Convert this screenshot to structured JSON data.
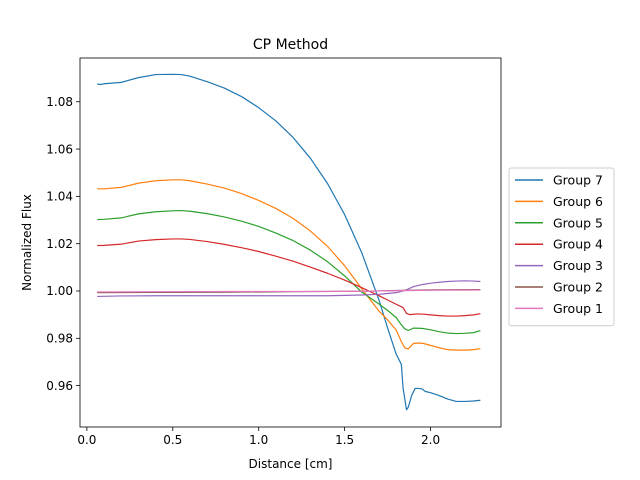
{
  "chart_data": {
    "type": "line",
    "title": "CP Method",
    "xlabel": "Distance [cm]",
    "ylabel": "Normalized Flux",
    "xlim": [
      -0.04,
      2.41
    ],
    "ylim": [
      0.9425,
      1.0985
    ],
    "xticks": [
      0.0,
      0.5,
      1.0,
      1.5,
      2.0
    ],
    "xtick_labels": [
      "0.0",
      "0.5",
      "1.0",
      "1.5",
      "2.0"
    ],
    "yticks": [
      0.96,
      0.98,
      1.0,
      1.02,
      1.04,
      1.06,
      1.08
    ],
    "ytick_labels": [
      "0.96",
      "0.98",
      "1.00",
      "1.02",
      "1.04",
      "1.06",
      "1.08"
    ],
    "grid": false,
    "legend_position": "right outside",
    "series": [
      {
        "name": "Group 7",
        "color": "#1f77b4",
        "x": [
          0.06,
          0.08,
          0.1,
          0.2,
          0.3,
          0.4,
          0.5,
          0.55,
          0.6,
          0.7,
          0.8,
          0.9,
          1.0,
          1.1,
          1.2,
          1.3,
          1.4,
          1.5,
          1.6,
          1.7,
          1.75,
          1.8,
          1.83,
          1.84,
          1.86,
          1.87,
          1.89,
          1.91,
          1.93,
          1.95,
          1.97,
          2.0,
          2.05,
          2.1,
          2.15,
          2.2,
          2.25,
          2.29
        ],
        "y": [
          1.0875,
          1.0873,
          1.0876,
          1.0882,
          1.0902,
          1.0915,
          1.0916,
          1.0915,
          1.0908,
          1.0885,
          1.0858,
          1.0822,
          1.0775,
          1.0719,
          1.0649,
          1.0562,
          1.0455,
          1.0323,
          1.0161,
          0.9962,
          0.9844,
          0.9733,
          0.969,
          0.959,
          0.9498,
          0.9508,
          0.9558,
          0.9588,
          0.9588,
          0.9586,
          0.9575,
          0.957,
          0.9558,
          0.9543,
          0.9533,
          0.9533,
          0.9535,
          0.9538
        ]
      },
      {
        "name": "Group 6",
        "color": "#ff7f0e",
        "x": [
          0.06,
          0.1,
          0.2,
          0.3,
          0.4,
          0.5,
          0.55,
          0.6,
          0.7,
          0.8,
          0.9,
          1.0,
          1.1,
          1.2,
          1.3,
          1.4,
          1.5,
          1.6,
          1.7,
          1.75,
          1.8,
          1.83,
          1.85,
          1.87,
          1.9,
          1.93,
          1.96,
          2.0,
          2.05,
          2.1,
          2.15,
          2.2,
          2.25,
          2.29
        ],
        "y": [
          1.0432,
          1.0432,
          1.0438,
          1.0456,
          1.0466,
          1.047,
          1.047,
          1.0466,
          1.0452,
          1.0435,
          1.0412,
          1.0383,
          1.0349,
          1.0307,
          1.0254,
          1.0189,
          1.0107,
          1.0009,
          0.9915,
          0.9878,
          0.9835,
          0.9786,
          0.976,
          0.9755,
          0.9778,
          0.978,
          0.9778,
          0.977,
          0.976,
          0.9752,
          0.975,
          0.975,
          0.9752,
          0.9756
        ]
      },
      {
        "name": "Group 5",
        "color": "#2ca02c",
        "x": [
          0.06,
          0.1,
          0.2,
          0.3,
          0.4,
          0.5,
          0.55,
          0.6,
          0.7,
          0.8,
          0.9,
          1.0,
          1.1,
          1.2,
          1.3,
          1.4,
          1.5,
          1.6,
          1.7,
          1.75,
          1.8,
          1.83,
          1.85,
          1.87,
          1.9,
          1.95,
          2.0,
          2.05,
          2.1,
          2.15,
          2.2,
          2.25,
          2.29
        ],
        "y": [
          1.0302,
          1.0303,
          1.0309,
          1.0326,
          1.0335,
          1.0339,
          1.034,
          1.0337,
          1.0327,
          1.0313,
          1.0295,
          1.0273,
          1.0245,
          1.0213,
          1.0173,
          1.0124,
          1.0064,
          0.9995,
          0.9945,
          0.9918,
          0.9888,
          0.9857,
          0.984,
          0.9833,
          0.9843,
          0.9842,
          0.9836,
          0.9828,
          0.9822,
          0.982,
          0.9821,
          0.9824,
          0.9832
        ]
      },
      {
        "name": "Group 4",
        "color": "#d62728",
        "x": [
          0.06,
          0.1,
          0.2,
          0.3,
          0.4,
          0.5,
          0.55,
          0.6,
          0.7,
          0.8,
          0.9,
          1.0,
          1.1,
          1.2,
          1.3,
          1.4,
          1.5,
          1.6,
          1.7,
          1.75,
          1.8,
          1.84,
          1.86,
          1.88,
          1.92,
          1.96,
          2.0,
          2.05,
          2.1,
          2.15,
          2.2,
          2.25,
          2.29
        ],
        "y": [
          1.0192,
          1.0193,
          1.0198,
          1.0211,
          1.0217,
          1.022,
          1.022,
          1.0218,
          1.0209,
          1.0197,
          1.0183,
          1.0167,
          1.0147,
          1.0126,
          1.0101,
          1.0075,
          1.0046,
          1.0014,
          0.998,
          0.9962,
          0.9944,
          0.993,
          0.9905,
          0.99,
          0.9903,
          0.9902,
          0.9899,
          0.9896,
          0.9894,
          0.9894,
          0.9896,
          0.9899,
          0.9904
        ]
      },
      {
        "name": "Group 3",
        "color": "#9467bd",
        "x": [
          0.06,
          0.2,
          0.4,
          0.6,
          0.8,
          1.0,
          1.2,
          1.4,
          1.6,
          1.7,
          1.8,
          1.85,
          1.9,
          1.95,
          2.0,
          2.05,
          2.1,
          2.15,
          2.2,
          2.25,
          2.29
        ],
        "y": [
          0.9977,
          0.9979,
          0.998,
          0.998,
          0.998,
          0.998,
          0.998,
          0.998,
          0.9983,
          0.9986,
          0.9993,
          1.0002,
          1.0018,
          1.0027,
          1.0033,
          1.0037,
          1.004,
          1.0042,
          1.0043,
          1.0042,
          1.004
        ]
      },
      {
        "name": "Group 2",
        "color": "#8c564b",
        "x": [
          0.06,
          0.4,
          0.8,
          1.2,
          1.6,
          1.8,
          2.0,
          2.29
        ],
        "y": [
          0.9993,
          0.9994,
          0.9995,
          0.9997,
          0.9999,
          1.0002,
          1.0005,
          1.0006
        ]
      },
      {
        "name": "Group 1",
        "color": "#e377c2",
        "x": [
          0.06,
          0.4,
          0.8,
          1.2,
          1.6,
          1.8,
          2.0,
          2.29
        ],
        "y": [
          0.9996,
          0.9997,
          0.9998,
          0.9998,
          0.9999,
          1.0001,
          1.0003,
          1.0004
        ]
      }
    ]
  }
}
